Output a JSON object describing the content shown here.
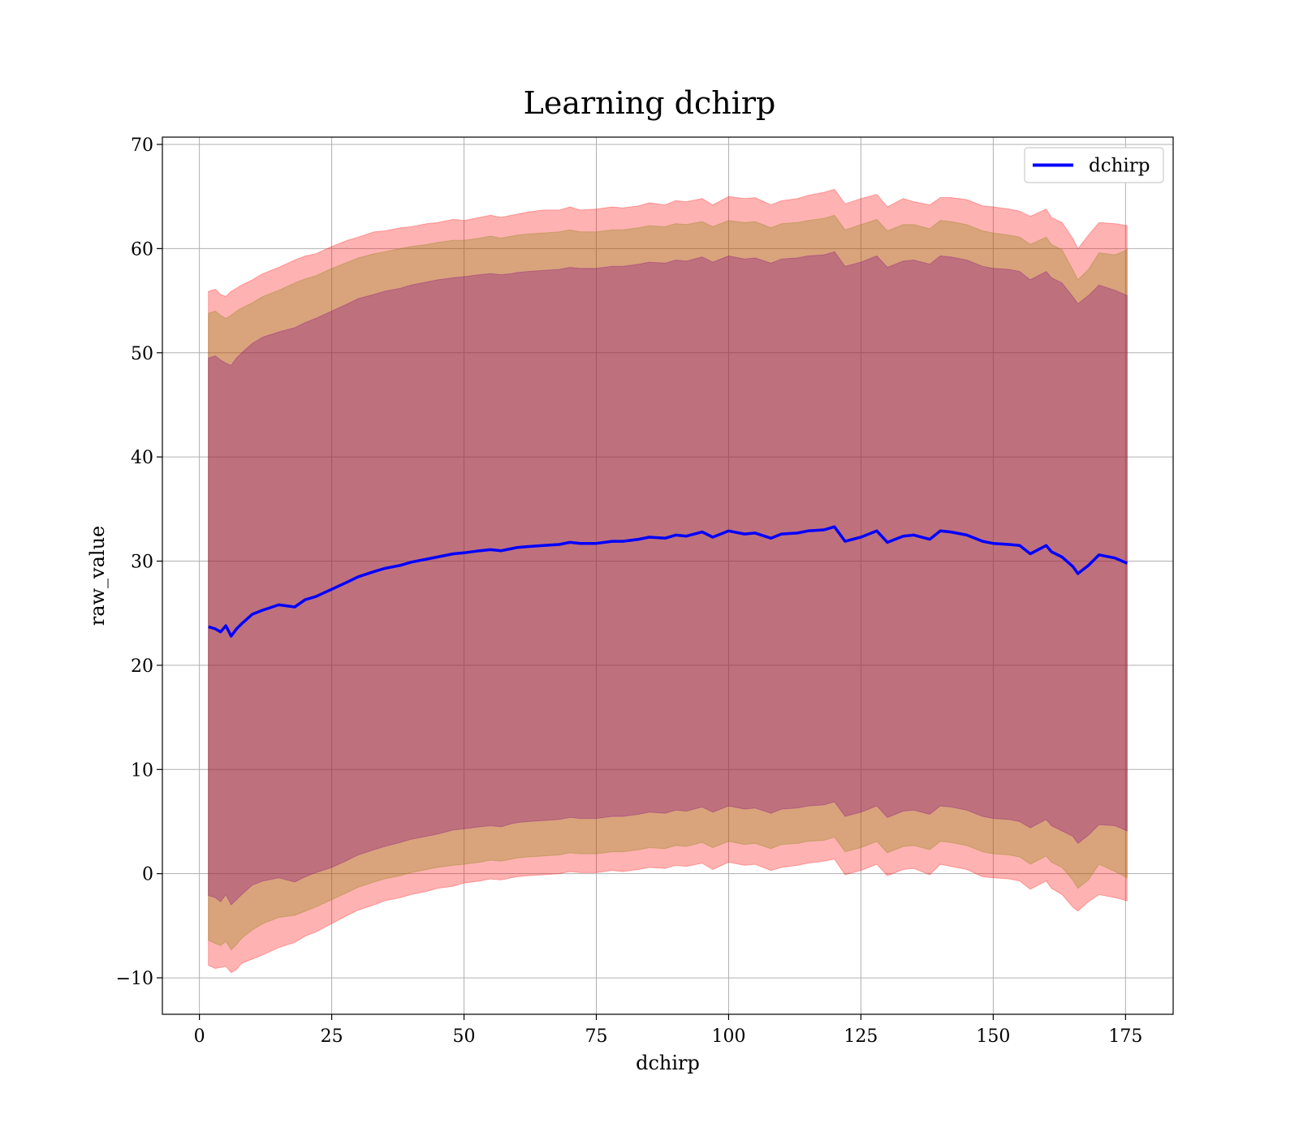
{
  "chart_data": {
    "type": "line",
    "title": "Learning dchirp",
    "xlabel": "dchirp",
    "ylabel": "raw_value",
    "xlim": [
      -7,
      184
    ],
    "ylim": [
      -13.5,
      70.7
    ],
    "xticks": [
      0,
      25,
      50,
      75,
      100,
      125,
      150,
      175
    ],
    "yticks": [
      -10,
      0,
      10,
      20,
      30,
      40,
      50,
      60,
      70
    ],
    "grid": true,
    "legend_position": "top-right",
    "series": [
      {
        "name": "dchirp",
        "color": "#0000ff",
        "x": [
          1.7,
          3,
          4,
          5,
          6,
          7,
          8,
          10,
          12,
          15,
          18,
          20,
          22,
          25,
          28,
          30,
          33,
          35,
          38,
          40,
          43,
          45,
          48,
          50,
          53,
          55,
          57,
          59,
          60,
          62,
          65,
          68,
          70,
          72,
          75,
          78,
          80,
          83,
          85,
          88,
          90,
          92,
          95,
          97,
          100,
          103,
          105,
          108,
          110,
          113,
          115,
          118,
          120,
          122,
          125,
          128,
          130,
          133,
          135,
          138,
          140,
          142,
          145,
          148,
          150,
          153,
          155,
          157,
          160,
          161,
          163,
          165,
          166,
          168,
          170,
          173,
          175.3
        ],
        "values": [
          23.7,
          23.5,
          23.2,
          23.8,
          22.8,
          23.5,
          24.0,
          24.9,
          25.3,
          25.8,
          25.6,
          26.3,
          26.6,
          27.3,
          28.0,
          28.5,
          29.0,
          29.3,
          29.6,
          29.9,
          30.2,
          30.4,
          30.7,
          30.8,
          31.0,
          31.1,
          31.0,
          31.2,
          31.3,
          31.4,
          31.5,
          31.6,
          31.8,
          31.7,
          31.7,
          31.9,
          31.9,
          32.1,
          32.3,
          32.2,
          32.5,
          32.4,
          32.8,
          32.3,
          32.9,
          32.6,
          32.7,
          32.2,
          32.6,
          32.7,
          32.9,
          33.0,
          33.3,
          31.9,
          32.3,
          32.9,
          31.8,
          32.4,
          32.5,
          32.1,
          32.9,
          32.8,
          32.5,
          31.9,
          31.7,
          31.6,
          31.5,
          30.7,
          31.5,
          30.9,
          30.4,
          29.5,
          28.8,
          29.6,
          30.6,
          30.3,
          29.8
        ]
      }
    ],
    "bands": [
      {
        "color": "#ff0000",
        "opacity": 0.3,
        "upper": [
          55.9,
          56.1,
          55.6,
          55.4,
          55.9,
          56.2,
          56.5,
          57.0,
          57.6,
          58.2,
          58.9,
          59.3,
          59.5,
          60.2,
          60.8,
          61.1,
          61.6,
          61.7,
          62.0,
          62.1,
          62.4,
          62.5,
          62.8,
          62.7,
          63.0,
          63.2,
          63.0,
          63.2,
          63.3,
          63.5,
          63.7,
          63.7,
          64.0,
          63.7,
          63.8,
          64.0,
          63.9,
          64.1,
          64.4,
          64.2,
          64.6,
          64.5,
          64.8,
          64.2,
          65.0,
          64.8,
          64.9,
          64.2,
          64.6,
          64.8,
          65.1,
          65.4,
          65.7,
          64.3,
          64.8,
          65.2,
          64.0,
          64.8,
          64.5,
          64.2,
          64.9,
          64.9,
          64.7,
          64.1,
          64.0,
          63.8,
          63.6,
          63.1,
          63.8,
          63.0,
          62.5,
          61.0,
          60.0,
          61.3,
          62.5,
          62.4,
          62.2
        ],
        "lower": [
          -8.8,
          -9.1,
          -9.0,
          -8.9,
          -9.5,
          -9.2,
          -8.6,
          -8.2,
          -7.8,
          -7.1,
          -6.6,
          -6.0,
          -5.6,
          -4.8,
          -4.0,
          -3.5,
          -3.0,
          -2.6,
          -2.3,
          -2.0,
          -1.7,
          -1.4,
          -1.2,
          -0.9,
          -0.7,
          -0.5,
          -0.6,
          -0.4,
          -0.3,
          -0.2,
          -0.1,
          0.0,
          0.2,
          0.1,
          0.1,
          0.3,
          0.2,
          0.4,
          0.6,
          0.5,
          0.8,
          0.7,
          1.0,
          0.4,
          1.1,
          0.8,
          0.9,
          0.3,
          0.6,
          0.8,
          1.0,
          1.2,
          1.4,
          -0.1,
          0.3,
          0.9,
          -0.2,
          0.4,
          0.5,
          -0.1,
          0.9,
          0.7,
          0.4,
          -0.3,
          -0.4,
          -0.5,
          -0.7,
          -1.5,
          -0.7,
          -1.4,
          -2.0,
          -3.2,
          -3.6,
          -2.7,
          -2.0,
          -2.3,
          -2.6
        ]
      },
      {
        "color": "#808000",
        "opacity": 0.3,
        "upper": [
          53.8,
          54.0,
          53.6,
          53.3,
          53.6,
          54.0,
          54.3,
          54.8,
          55.4,
          56.0,
          56.7,
          57.1,
          57.4,
          58.1,
          58.7,
          59.1,
          59.5,
          59.7,
          60.0,
          60.2,
          60.4,
          60.6,
          60.8,
          60.8,
          61.0,
          61.2,
          61.0,
          61.2,
          61.3,
          61.4,
          61.5,
          61.6,
          61.8,
          61.6,
          61.6,
          61.8,
          61.8,
          62.0,
          62.2,
          62.1,
          62.4,
          62.3,
          62.6,
          62.1,
          62.7,
          62.5,
          62.6,
          62.0,
          62.4,
          62.5,
          62.7,
          62.9,
          63.2,
          61.8,
          62.3,
          62.8,
          61.7,
          62.3,
          62.3,
          61.9,
          62.7,
          62.6,
          62.3,
          61.7,
          61.5,
          61.3,
          61.1,
          60.4,
          61.1,
          60.4,
          59.9,
          58.0,
          57.0,
          58.0,
          59.6,
          59.4,
          59.9
        ],
        "lower": [
          -6.4,
          -6.7,
          -6.9,
          -6.5,
          -7.3,
          -6.8,
          -6.2,
          -5.4,
          -4.8,
          -4.2,
          -4.0,
          -3.6,
          -3.2,
          -2.5,
          -1.8,
          -1.3,
          -0.8,
          -0.5,
          -0.2,
          0.1,
          0.4,
          0.6,
          0.8,
          0.9,
          1.1,
          1.3,
          1.2,
          1.4,
          1.5,
          1.6,
          1.7,
          1.8,
          2.0,
          1.9,
          1.9,
          2.1,
          2.1,
          2.3,
          2.5,
          2.4,
          2.7,
          2.6,
          3.0,
          2.5,
          3.1,
          2.8,
          2.9,
          2.4,
          2.8,
          2.9,
          3.1,
          3.2,
          3.5,
          2.1,
          2.5,
          3.1,
          2.0,
          2.6,
          2.7,
          2.3,
          3.1,
          3.0,
          2.7,
          2.1,
          1.9,
          1.8,
          1.6,
          0.9,
          1.7,
          1.1,
          0.6,
          -0.6,
          -1.4,
          -0.6,
          0.9,
          0.2,
          -0.4
        ]
      },
      {
        "color": "#800080",
        "opacity": 0.3,
        "upper": [
          49.5,
          49.7,
          49.3,
          49.0,
          48.8,
          49.5,
          50.0,
          50.9,
          51.5,
          52.0,
          52.4,
          52.9,
          53.3,
          54.0,
          54.7,
          55.2,
          55.6,
          55.9,
          56.2,
          56.5,
          56.8,
          57.0,
          57.2,
          57.3,
          57.5,
          57.6,
          57.5,
          57.6,
          57.7,
          57.8,
          57.9,
          58.0,
          58.2,
          58.1,
          58.1,
          58.3,
          58.3,
          58.5,
          58.7,
          58.6,
          58.9,
          58.8,
          59.2,
          58.7,
          59.3,
          59.0,
          59.1,
          58.6,
          59.0,
          59.1,
          59.3,
          59.4,
          59.7,
          58.3,
          58.7,
          59.3,
          58.2,
          58.8,
          58.9,
          58.5,
          59.3,
          59.2,
          58.9,
          58.3,
          58.1,
          58.0,
          57.8,
          57.0,
          57.8,
          57.2,
          56.7,
          55.4,
          54.7,
          55.5,
          56.5,
          56.0,
          55.5
        ],
        "lower": [
          -2.1,
          -2.3,
          -2.7,
          -2.0,
          -3.0,
          -2.5,
          -2.0,
          -1.1,
          -0.7,
          -0.4,
          -0.8,
          -0.3,
          0.1,
          0.6,
          1.3,
          1.8,
          2.3,
          2.6,
          3.0,
          3.3,
          3.6,
          3.8,
          4.2,
          4.3,
          4.5,
          4.6,
          4.5,
          4.8,
          4.9,
          5.0,
          5.1,
          5.2,
          5.4,
          5.3,
          5.3,
          5.5,
          5.5,
          5.7,
          5.9,
          5.8,
          6.1,
          6.0,
          6.4,
          5.9,
          6.5,
          6.2,
          6.3,
          5.8,
          6.2,
          6.3,
          6.5,
          6.6,
          6.9,
          5.5,
          5.9,
          6.5,
          5.4,
          6.0,
          6.1,
          5.7,
          6.5,
          6.4,
          6.1,
          5.5,
          5.3,
          5.2,
          5.0,
          4.4,
          5.2,
          4.6,
          4.1,
          3.6,
          2.9,
          3.7,
          4.7,
          4.6,
          4.1
        ]
      }
    ]
  }
}
